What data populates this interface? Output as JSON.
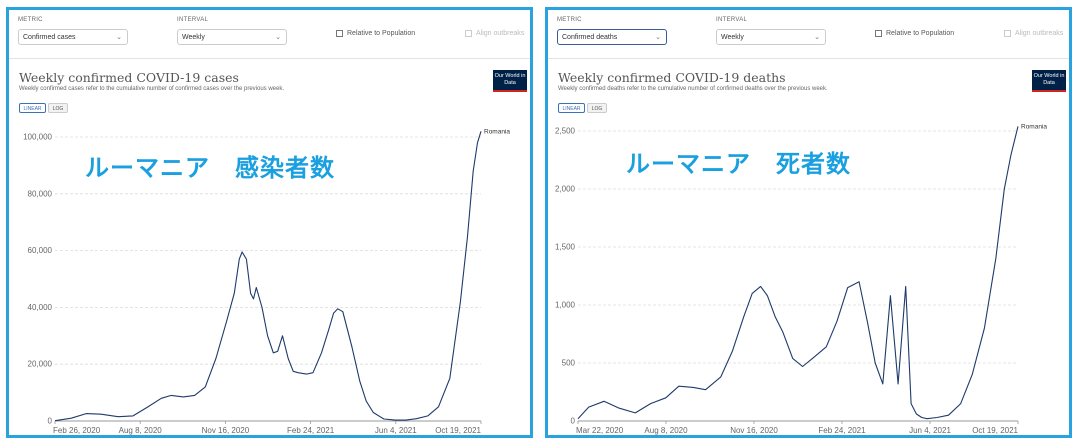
{
  "panels": [
    {
      "controls": {
        "metric_label": "METRIC",
        "metric_value": "Confirmed cases",
        "interval_label": "INTERVAL",
        "interval_value": "Weekly",
        "relative_label": "Relative to Population",
        "align_label": "Align outbreaks"
      },
      "logo": "Our World in Data",
      "scale": {
        "linear": "LINEAR",
        "log": "LOG"
      },
      "overlay_text": "ルーマニア　感染者数",
      "chart_data": {
        "type": "line",
        "title": "Weekly confirmed COVID-19 cases",
        "subtitle": "Weekly confirmed cases refer to the cumulative number of confirmed cases over the previous week.",
        "xlabel": "",
        "ylabel": "",
        "x_tick_labels": [
          "Feb 26, 2020",
          "Aug 8, 2020",
          "Nov 16, 2020",
          "Feb 24, 2021",
          "Jun 4, 2021",
          "Oct 19, 2021"
        ],
        "y_tick_labels": [
          "0",
          "20,000",
          "40,000",
          "60,000",
          "80,000",
          "100,000"
        ],
        "ylim": [
          0,
          100000
        ],
        "xlim": [
          "2020-02-26",
          "2021-10-19"
        ],
        "grid": true,
        "series": [
          {
            "name": "Romania",
            "x": [
              "2020-02-26",
              "2020-03-20",
              "2020-04-10",
              "2020-05-01",
              "2020-05-25",
              "2020-06-15",
              "2020-07-05",
              "2020-07-25",
              "2020-08-08",
              "2020-08-25",
              "2020-09-10",
              "2020-09-25",
              "2020-10-10",
              "2020-10-25",
              "2020-11-05",
              "2020-11-12",
              "2020-11-16",
              "2020-11-22",
              "2020-11-28",
              "2020-12-02",
              "2020-12-06",
              "2020-12-14",
              "2020-12-22",
              "2020-12-30",
              "2021-01-05",
              "2021-01-12",
              "2021-01-20",
              "2021-01-27",
              "2021-02-03",
              "2021-02-15",
              "2021-02-24",
              "2021-03-08",
              "2021-03-18",
              "2021-03-25",
              "2021-03-31",
              "2021-04-07",
              "2021-04-20",
              "2021-05-01",
              "2021-05-10",
              "2021-05-20",
              "2021-06-04",
              "2021-06-20",
              "2021-07-05",
              "2021-07-20",
              "2021-08-05",
              "2021-08-20",
              "2021-09-05",
              "2021-09-20",
              "2021-09-30",
              "2021-10-08",
              "2021-10-14",
              "2021-10-19"
            ],
            "y": [
              100,
              1000,
              2600,
              2400,
              1500,
              1800,
              4800,
              8000,
              9000,
              8500,
              9000,
              12000,
              22000,
              35000,
              45000,
              57000,
              59500,
              57000,
              45000,
              43000,
              47000,
              40000,
              30000,
              24000,
              24500,
              30000,
              22000,
              17500,
              17000,
              16500,
              17000,
              24000,
              32000,
              38000,
              39500,
              38500,
              26000,
              14000,
              7000,
              3000,
              700,
              300,
              300,
              800,
              1800,
              5000,
              15000,
              42000,
              65000,
              88000,
              98000,
              102000
            ]
          }
        ]
      }
    },
    {
      "controls": {
        "metric_label": "METRIC",
        "metric_value": "Confirmed deaths",
        "interval_label": "INTERVAL",
        "interval_value": "Weekly",
        "relative_label": "Relative to Population",
        "align_label": "Align outbreaks"
      },
      "logo": "Our World in Data",
      "scale": {
        "linear": "LINEAR",
        "log": "LOG"
      },
      "overlay_text": "ルーマニア　死者数",
      "chart_data": {
        "type": "line",
        "title": "Weekly confirmed COVID-19 deaths",
        "subtitle": "Weekly confirmed deaths refer to the cumulative number of confirmed deaths over the previous week.",
        "xlabel": "",
        "ylabel": "",
        "x_tick_labels": [
          "Mar 22, 2020",
          "Aug 8, 2020",
          "Nov 16, 2020",
          "Feb 24, 2021",
          "Jun 4, 2021",
          "Oct 19, 2021"
        ],
        "y_tick_labels": [
          "0",
          "500",
          "1,000",
          "1,500",
          "2,000",
          "2,500"
        ],
        "ylim": [
          0,
          2500
        ],
        "xlim": [
          "2020-03-22",
          "2021-10-19"
        ],
        "grid": true,
        "series": [
          {
            "name": "Romania",
            "x": [
              "2020-03-22",
              "2020-04-05",
              "2020-04-25",
              "2020-05-15",
              "2020-06-05",
              "2020-06-25",
              "2020-07-15",
              "2020-08-01",
              "2020-08-20",
              "2020-09-05",
              "2020-09-25",
              "2020-10-10",
              "2020-10-25",
              "2020-11-05",
              "2020-11-16",
              "2020-11-25",
              "2020-12-05",
              "2020-12-15",
              "2020-12-28",
              "2021-01-10",
              "2021-01-25",
              "2021-02-10",
              "2021-02-24",
              "2021-03-10",
              "2021-03-25",
              "2021-04-05",
              "2021-04-15",
              "2021-04-25",
              "2021-05-05",
              "2021-05-15",
              "2021-05-25",
              "2021-06-01",
              "2021-06-08",
              "2021-06-15",
              "2021-06-22",
              "2021-07-05",
              "2021-07-20",
              "2021-08-05",
              "2021-08-20",
              "2021-09-05",
              "2021-09-20",
              "2021-10-01",
              "2021-10-10",
              "2021-10-19"
            ],
            "y": [
              20,
              120,
              170,
              110,
              70,
              150,
              200,
              300,
              290,
              270,
              380,
              600,
              900,
              1100,
              1160,
              1080,
              900,
              770,
              540,
              470,
              550,
              640,
              860,
              1150,
              1200,
              850,
              500,
              320,
              1080,
              320,
              1160,
              150,
              60,
              30,
              20,
              30,
              50,
              150,
              400,
              800,
              1400,
              2000,
              2300,
              2540
            ]
          }
        ]
      }
    }
  ]
}
